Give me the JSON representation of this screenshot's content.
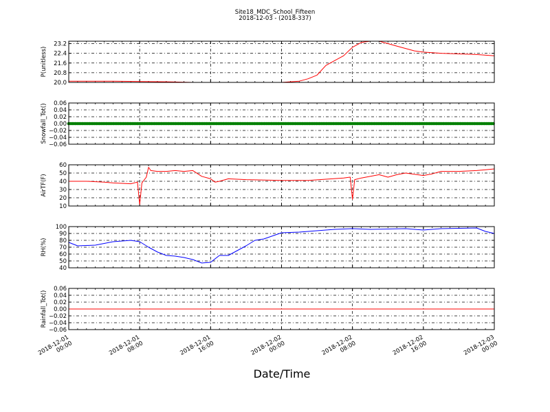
{
  "figure": {
    "title_line1": "Site18_MDC_School_Fifteen",
    "title_line2": "2018-12-03 - (2018-337)",
    "xlabel": "Date/Time",
    "x_ticks": [
      {
        "hours": 0,
        "line1": "2018-12-01",
        "line2": "00:00"
      },
      {
        "hours": 8,
        "line1": "2018-12-01",
        "line2": "08:00"
      },
      {
        "hours": 16,
        "line1": "2018-12-01",
        "line2": "16:00"
      },
      {
        "hours": 24,
        "line1": "2018-12-02",
        "line2": "00:00"
      },
      {
        "hours": 32,
        "line1": "2018-12-02",
        "line2": "08:00"
      },
      {
        "hours": 40,
        "line1": "2018-12-02",
        "line2": "16:00"
      },
      {
        "hours": 48,
        "line1": "2018-12-03",
        "line2": "00:00"
      }
    ]
  },
  "chart_data": [
    {
      "type": "line",
      "ylabel": "P(unitless)",
      "ylim": [
        20.0,
        23.4
      ],
      "yticks": [
        "20.0",
        "20.8",
        "21.6",
        "22.4",
        "23.2"
      ],
      "grid": true,
      "color": "#ff0000",
      "markers": false,
      "x": [
        "2018-12-01 00:00",
        "2018-12-01 05:00",
        "2018-12-01 11:00",
        "2018-12-01 14:00",
        "2018-12-02 00:00",
        "2018-12-02 02:00",
        "2018-12-02 03:00",
        "2018-12-02 04:00",
        "2018-12-02 05:00",
        "2018-12-02 06:00",
        "2018-12-02 07:00",
        "2018-12-02 08:00",
        "2018-12-02 09:00",
        "2018-12-02 10:00",
        "2018-12-02 11:00",
        "2018-12-02 12:00",
        "2018-12-02 13:00",
        "2018-12-02 14:00",
        "2018-12-02 15:00",
        "2018-12-02 16:00",
        "2018-12-02 18:00",
        "2018-12-02 20:00",
        "2018-12-02 22:00",
        "2018-12-03 00:00"
      ],
      "y": [
        20.1,
        20.1,
        20.05,
        20.0,
        20.0,
        20.1,
        20.3,
        20.6,
        21.4,
        21.8,
        22.2,
        22.9,
        23.3,
        23.4,
        23.4,
        23.2,
        23.0,
        22.8,
        22.6,
        22.5,
        22.4,
        22.35,
        22.3,
        22.2
      ]
    },
    {
      "type": "line",
      "ylabel": "Snowfall_Tot()",
      "ylim": [
        -0.06,
        0.06
      ],
      "yticks": [
        "−0.06",
        "−0.04",
        "−0.02",
        "0.00",
        "0.02",
        "0.04",
        "0.06"
      ],
      "grid": true,
      "color": "#008000",
      "markers": true,
      "x": [
        "2018-12-01 00:00",
        "2018-12-03 00:00"
      ],
      "y": [
        0.0,
        0.0
      ]
    },
    {
      "type": "line",
      "ylabel": "AirTF(F)",
      "ylim": [
        10,
        60
      ],
      "yticks": [
        "10",
        "20",
        "30",
        "40",
        "50",
        "60"
      ],
      "grid": true,
      "color": "#ff0000",
      "markers": false,
      "x": [
        "2018-12-01 00:00",
        "2018-12-01 02:00",
        "2018-12-01 04:00",
        "2018-12-01 05:00",
        "2018-12-01 07:00",
        "2018-12-01 07:45",
        "2018-12-01 08:00",
        "2018-12-01 08:15",
        "2018-12-01 08:45",
        "2018-12-01 09:00",
        "2018-12-01 09:15",
        "2018-12-01 10:00",
        "2018-12-01 11:00",
        "2018-12-01 12:00",
        "2018-12-01 13:00",
        "2018-12-01 14:00",
        "2018-12-01 15:00",
        "2018-12-01 16:00",
        "2018-12-01 16:30",
        "2018-12-01 17:00",
        "2018-12-01 18:00",
        "2018-12-01 20:00",
        "2018-12-02 00:00",
        "2018-12-02 03:00",
        "2018-12-02 07:00",
        "2018-12-02 07:45",
        "2018-12-02 08:00",
        "2018-12-02 08:15",
        "2018-12-02 09:00",
        "2018-12-02 11:00",
        "2018-12-02 12:00",
        "2018-12-02 13:00",
        "2018-12-02 14:00",
        "2018-12-02 16:00",
        "2018-12-02 17:00",
        "2018-12-02 18:00",
        "2018-12-02 20:00",
        "2018-12-02 22:00",
        "2018-12-02 23:00",
        "2018-12-03 00:00"
      ],
      "y": [
        40,
        40,
        39,
        38,
        37,
        39,
        12,
        38,
        45,
        57,
        53,
        52,
        52,
        53,
        52,
        53,
        46,
        43,
        39,
        40,
        43,
        42,
        41,
        41,
        44,
        45,
        18,
        42,
        44,
        48,
        45,
        48,
        50,
        47,
        49,
        52,
        52,
        53,
        54,
        55
      ]
    },
    {
      "type": "line",
      "ylabel": "RH(%)",
      "ylim": [
        40,
        100
      ],
      "yticks": [
        "40",
        "50",
        "60",
        "70",
        "80",
        "90",
        "100"
      ],
      "grid": true,
      "color": "#0000ff",
      "markers": false,
      "x": [
        "2018-12-01 00:00",
        "2018-12-01 01:00",
        "2018-12-01 03:00",
        "2018-12-01 05:00",
        "2018-12-01 07:00",
        "2018-12-01 08:00",
        "2018-12-01 09:00",
        "2018-12-01 10:00",
        "2018-12-01 11:00",
        "2018-12-01 12:00",
        "2018-12-01 13:00",
        "2018-12-01 14:00",
        "2018-12-01 15:00",
        "2018-12-01 16:00",
        "2018-12-01 17:00",
        "2018-12-01 18:00",
        "2018-12-01 20:00",
        "2018-12-01 21:00",
        "2018-12-01 22:00",
        "2018-12-02 00:00",
        "2018-12-02 02:00",
        "2018-12-02 04:00",
        "2018-12-02 06:00",
        "2018-12-02 08:00",
        "2018-12-02 10:00",
        "2018-12-02 14:00",
        "2018-12-02 16:00",
        "2018-12-02 18:00",
        "2018-12-02 22:00",
        "2018-12-02 23:00",
        "2018-12-03 00:00"
      ],
      "y": [
        77,
        72,
        73,
        78,
        80,
        78,
        70,
        63,
        58,
        57,
        55,
        52,
        47,
        48,
        58,
        58,
        72,
        80,
        82,
        91,
        92,
        94,
        96,
        97,
        96,
        97,
        95,
        97,
        98,
        93,
        90
      ]
    },
    {
      "type": "line",
      "ylabel": "Rainfall_Tot()",
      "ylim": [
        -0.06,
        0.06
      ],
      "yticks": [
        "−0.06",
        "−0.04",
        "−0.02",
        "0.00",
        "0.02",
        "0.04",
        "0.06"
      ],
      "grid": true,
      "color": "#ff0000",
      "markers": false,
      "x": [
        "2018-12-01 00:00",
        "2018-12-03 00:00"
      ],
      "y": [
        0.0,
        0.0
      ]
    }
  ]
}
